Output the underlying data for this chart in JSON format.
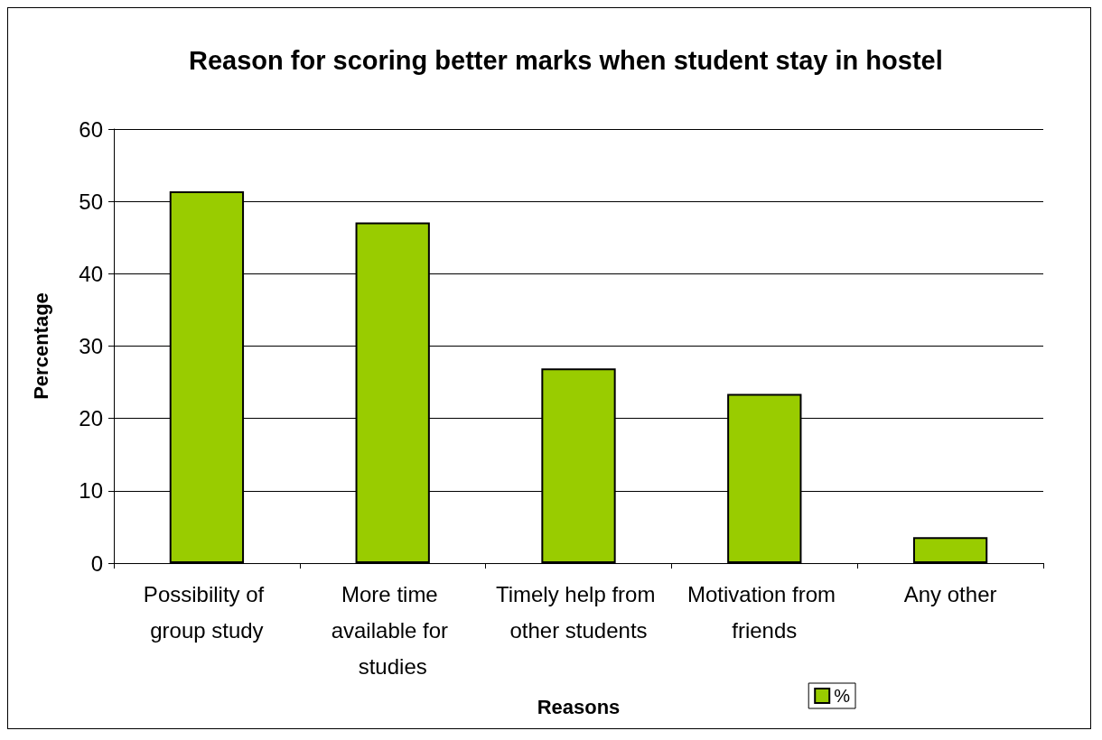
{
  "chart_data": {
    "type": "bar",
    "title": "Reason for scoring better marks when student stay in hostel",
    "xlabel": "Reasons",
    "ylabel": "Percentage",
    "categories": [
      "Possibility of group study",
      "More time available for studies",
      "Timely help from other students",
      "Motivation from friends",
      "Any other"
    ],
    "series": [
      {
        "name": "%",
        "color": "#99cc00",
        "values": [
          51.4,
          47.1,
          26.9,
          23.4,
          3.6
        ]
      }
    ],
    "ylim": [
      0,
      60
    ],
    "yticks": [
      0,
      10,
      20,
      30,
      40,
      50,
      60
    ],
    "grid": "y",
    "legend": "bottom right"
  }
}
